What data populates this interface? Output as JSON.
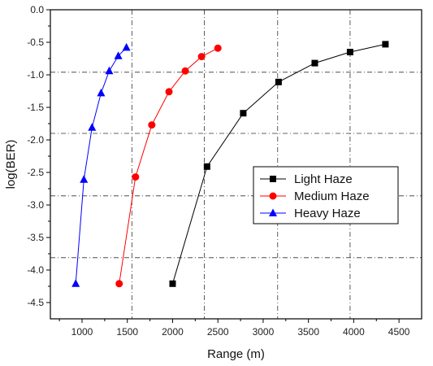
{
  "chart_data": {
    "type": "line",
    "xlabel": "Range (m)",
    "ylabel": "log(BER)",
    "xlim": [
      650,
      4750
    ],
    "ylim": [
      -4.75,
      0.0
    ],
    "xticks": [
      1000,
      1500,
      2000,
      2500,
      3000,
      3500,
      4000,
      4500
    ],
    "xtick_labels": [
      "1000",
      "1500",
      "2000",
      "2500",
      "3000",
      "3500",
      "4000",
      "4500"
    ],
    "yticks": [
      0.0,
      -0.5,
      -1.0,
      -1.5,
      -2.0,
      -2.5,
      -3.0,
      -3.5,
      -4.0,
      -4.5
    ],
    "ytick_labels": [
      "0.0",
      "-0.5",
      "-1.0",
      "-1.5",
      "-2.0",
      "-2.5",
      "-3.0",
      "-3.5",
      "-4.0",
      "-4.5"
    ],
    "legend_position": "center-right",
    "reference_lines": {
      "horizontal": [
        -0.96,
        -1.9,
        -2.86,
        -3.81
      ],
      "vertical": [
        1550,
        2350,
        3160,
        3960
      ]
    },
    "series": [
      {
        "name": "Light Haze",
        "marker": "square",
        "color": "#000000",
        "x": [
          2000,
          2380,
          2780,
          3170,
          3570,
          3960,
          4350
        ],
        "y": [
          -4.21,
          -2.41,
          -1.59,
          -1.11,
          -0.82,
          -0.65,
          -0.53
        ]
      },
      {
        "name": "Medium Haze",
        "marker": "circle",
        "color": "#ff0000",
        "x": [
          1410,
          1590,
          1770,
          1960,
          2140,
          2320,
          2500
        ],
        "y": [
          -4.21,
          -2.57,
          -1.77,
          -1.26,
          -0.94,
          -0.72,
          -0.59
        ]
      },
      {
        "name": "Heavy Haze",
        "marker": "triangle",
        "color": "#0000ff",
        "x": [
          930,
          1020,
          1110,
          1210,
          1300,
          1400,
          1490
        ],
        "y": [
          -4.21,
          -2.61,
          -1.81,
          -1.28,
          -0.94,
          -0.71,
          -0.58
        ]
      }
    ]
  }
}
